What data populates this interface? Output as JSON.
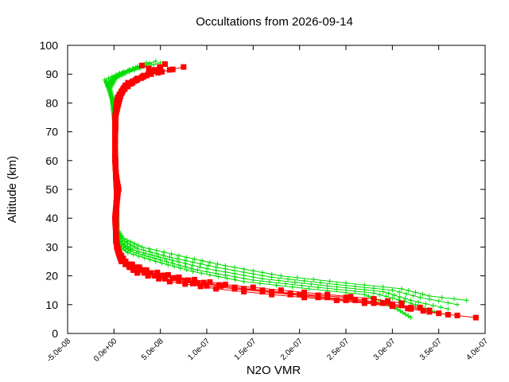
{
  "chart_data": {
    "type": "scatter",
    "title": "Occultations from 2026-09-14",
    "xlabel": "N2O VMR",
    "ylabel": "Altitude (km)",
    "xlim": [
      -5e-08,
      4e-07
    ],
    "ylim": [
      0,
      100
    ],
    "x_ticks": [
      "-5.0e-08",
      "0.0e+00",
      "5.0e-08",
      "1.0e-07",
      "1.5e-07",
      "2.0e-07",
      "2.5e-07",
      "3.0e-07",
      "3.5e-07",
      "4.0e-07"
    ],
    "y_ticks": [
      "0",
      "10",
      "20",
      "30",
      "40",
      "50",
      "60",
      "70",
      "80",
      "90",
      "100"
    ],
    "grid": false,
    "legend": "none",
    "series": [
      {
        "marker": "plus",
        "color": "#00dd00",
        "profiles": [
          [
            [
              3.8e-07,
              11.5
            ],
            [
              3.4e-07,
              13.0
            ],
            [
              3.1e-07,
              15.5
            ],
            [
              2.5e-07,
              17.5
            ],
            [
              1.8e-07,
              20.0
            ],
            [
              1.2e-07,
              23.5
            ],
            [
              7e-08,
              27.0
            ],
            [
              3e-08,
              30.0
            ],
            [
              1e-08,
              33.0
            ],
            [
              4e-09,
              36.0
            ],
            [
              3e-09,
              40.0
            ],
            [
              3e-09,
              50.0
            ],
            [
              2e-09,
              60.0
            ],
            [
              1e-09,
              70.0
            ],
            [
              0.0,
              78.0
            ],
            [
              -3e-09,
              83.0
            ],
            [
              -8e-09,
              87.0
            ],
            [
              5e-09,
              90.0
            ],
            [
              2e-08,
              92.0
            ],
            [
              3.5e-08,
              94.0
            ]
          ],
          [
            [
              3.7e-07,
              10.0
            ],
            [
              3.3e-07,
              12.5
            ],
            [
              3e-07,
              15.0
            ],
            [
              2.4e-07,
              17.0
            ],
            [
              1.7e-07,
              19.5
            ],
            [
              1.1e-07,
              23.0
            ],
            [
              6e-08,
              26.5
            ],
            [
              2.5e-08,
              29.5
            ],
            [
              8e-09,
              32.5
            ],
            [
              4e-09,
              36.0
            ],
            [
              3e-09,
              45.0
            ],
            [
              2e-09,
              60.0
            ],
            [
              1e-09,
              72.0
            ],
            [
              -1e-09,
              80.0
            ],
            [
              -5e-09,
              85.0
            ],
            [
              -1e-08,
              88.0
            ],
            [
              1e-08,
              91.0
            ],
            [
              3e-08,
              93.0
            ]
          ],
          [
            [
              3.6e-07,
              8.5
            ],
            [
              3.2e-07,
              11.5
            ],
            [
              2.9e-07,
              14.5
            ],
            [
              2.3e-07,
              16.5
            ],
            [
              1.6e-07,
              19.0
            ],
            [
              1e-07,
              22.5
            ],
            [
              5.5e-08,
              26.0
            ],
            [
              2e-08,
              29.0
            ],
            [
              6e-09,
              32.0
            ],
            [
              3e-09,
              35.0
            ],
            [
              3e-09,
              45.0
            ],
            [
              2e-09,
              60.0
            ],
            [
              1e-09,
              72.0
            ],
            [
              -2e-09,
              82.0
            ],
            [
              -6e-09,
              86.0
            ],
            [
              0.0,
              89.0
            ],
            [
              2.5e-08,
              92.5
            ],
            [
              4.5e-08,
              94.5
            ]
          ],
          [
            [
              3.5e-07,
              7.0
            ],
            [
              3.2e-07,
              10.5
            ],
            [
              2.8e-07,
              14.0
            ],
            [
              2.2e-07,
              16.0
            ],
            [
              1.5e-07,
              18.5
            ],
            [
              9e-08,
              22.0
            ],
            [
              5e-08,
              25.5
            ],
            [
              1.8e-08,
              28.5
            ],
            [
              5e-09,
              31.5
            ],
            [
              3e-09,
              35.0
            ],
            [
              3e-09,
              45.0
            ],
            [
              2e-09,
              60.0
            ],
            [
              1e-09,
              72.0
            ],
            [
              -1e-09,
              80.0
            ],
            [
              -4e-09,
              85.0
            ],
            [
              2e-09,
              88.5
            ],
            [
              2e-08,
              91.5
            ],
            [
              3.8e-08,
              93.5
            ]
          ],
          [
            [
              3.2e-07,
              5.5
            ],
            [
              3e-07,
              9.5
            ],
            [
              2.7e-07,
              13.5
            ],
            [
              2.1e-07,
              15.5
            ],
            [
              1.4e-07,
              18.0
            ],
            [
              8.5e-08,
              21.5
            ],
            [
              4.5e-08,
              25.0
            ],
            [
              1.5e-08,
              28.0
            ],
            [
              4e-09,
              31.0
            ],
            [
              3e-09,
              35.0
            ],
            [
              3e-09,
              45.0
            ],
            [
              2e-09,
              60.0
            ],
            [
              1e-09,
              72.0
            ],
            [
              -2e-09,
              81.0
            ],
            [
              -7e-09,
              86.0
            ],
            [
              5e-09,
              89.5
            ],
            [
              2.8e-08,
              92.0
            ],
            [
              5e-08,
              94.0
            ]
          ]
        ]
      },
      {
        "marker": "square",
        "color": "#ff0000",
        "profiles": [
          [
            [
              3.9e-07,
              5.5
            ],
            [
              3.5e-07,
              7.0
            ],
            [
              3e-07,
              9.5
            ],
            [
              2.4e-07,
              11.5
            ],
            [
              1.7e-07,
              13.5
            ],
            [
              1.1e-07,
              15.5
            ],
            [
              6e-08,
              18.0
            ],
            [
              2.5e-08,
              21.0
            ],
            [
              8e-09,
              25.0
            ],
            [
              3e-09,
              30.0
            ],
            [
              2e-09,
              35.0
            ],
            [
              1e-09,
              40.0
            ],
            [
              3e-09,
              47.0
            ],
            [
              5e-09,
              50.0
            ],
            [
              2e-09,
              55.0
            ],
            [
              1e-09,
              65.0
            ],
            [
              1e-09,
              75.0
            ],
            [
              4e-09,
              82.0
            ],
            [
              1.5e-08,
              87.0
            ],
            [
              4e-08,
              90.0
            ],
            [
              7.5e-08,
              92.5
            ]
          ],
          [
            [
              3.6e-07,
              6.5
            ],
            [
              3.2e-07,
              8.5
            ],
            [
              2.8e-07,
              10.5
            ],
            [
              2.2e-07,
              12.5
            ],
            [
              1.6e-07,
              14.5
            ],
            [
              1e-07,
              16.5
            ],
            [
              5.5e-08,
              19.0
            ],
            [
              2.2e-08,
              22.0
            ],
            [
              7e-09,
              26.0
            ],
            [
              3e-09,
              31.0
            ],
            [
              2e-09,
              36.0
            ],
            [
              2e-09,
              42.0
            ],
            [
              4e-09,
              48.0
            ],
            [
              3e-09,
              52.0
            ],
            [
              1e-09,
              60.0
            ],
            [
              1e-09,
              72.0
            ],
            [
              3e-09,
              80.0
            ],
            [
              1.2e-08,
              86.0
            ],
            [
              3.5e-08,
              89.5
            ],
            [
              6e-08,
              91.5
            ]
          ],
          [
            [
              3.4e-07,
              8.0
            ],
            [
              3e-07,
              10.0
            ],
            [
              2.6e-07,
              11.5
            ],
            [
              2e-07,
              13.5
            ],
            [
              1.4e-07,
              15.5
            ],
            [
              9e-08,
              17.5
            ],
            [
              5e-08,
              20.0
            ],
            [
              1.8e-08,
              23.0
            ],
            [
              6e-09,
              27.0
            ],
            [
              2e-09,
              32.0
            ],
            [
              2e-09,
              38.0
            ],
            [
              3e-09,
              46.0
            ],
            [
              4e-09,
              50.0
            ],
            [
              2e-09,
              56.0
            ],
            [
              1e-09,
              66.0
            ],
            [
              2e-09,
              78.0
            ],
            [
              1e-08,
              85.0
            ],
            [
              3e-08,
              89.0
            ],
            [
              5e-08,
              92.0
            ]
          ],
          [
            [
              3.3e-07,
              9.0
            ],
            [
              2.9e-07,
              10.5
            ],
            [
              2.5e-07,
              12.5
            ],
            [
              1.9e-07,
              14.0
            ],
            [
              1.3e-07,
              16.0
            ],
            [
              8e-08,
              18.5
            ],
            [
              4e-08,
              21.0
            ],
            [
              1.5e-08,
              24.0
            ],
            [
              5e-09,
              28.0
            ],
            [
              2e-09,
              33.0
            ],
            [
              2e-09,
              40.0
            ],
            [
              3e-09,
              48.0
            ],
            [
              2e-09,
              54.0
            ],
            [
              1e-09,
              64.0
            ],
            [
              2e-09,
              76.0
            ],
            [
              8e-09,
              84.0
            ],
            [
              2.5e-08,
              88.5
            ],
            [
              4.5e-08,
              91.0
            ],
            [
              3e-08,
              93.0
            ]
          ],
          [
            [
              3.1e-07,
              10.5
            ],
            [
              2.8e-07,
              12.0
            ],
            [
              2.3e-07,
              13.5
            ],
            [
              1.8e-07,
              15.0
            ],
            [
              1.2e-07,
              17.0
            ],
            [
              7e-08,
              19.5
            ],
            [
              3.5e-08,
              22.0
            ],
            [
              1.2e-08,
              25.0
            ],
            [
              4e-09,
              29.0
            ],
            [
              2e-09,
              34.0
            ],
            [
              2e-09,
              42.0
            ],
            [
              3e-09,
              49.0
            ],
            [
              2e-09,
              55.0
            ],
            [
              1e-09,
              65.0
            ],
            [
              2e-09,
              77.0
            ],
            [
              6e-09,
              83.0
            ],
            [
              2e-08,
              87.5
            ],
            [
              3.8e-08,
              90.5
            ],
            [
              5.5e-08,
              93.5
            ]
          ]
        ]
      }
    ]
  }
}
